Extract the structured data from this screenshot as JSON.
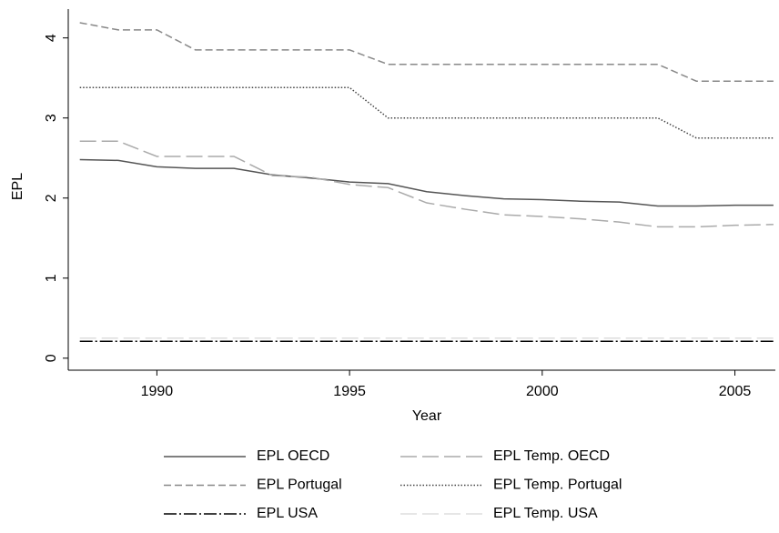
{
  "chart_data": {
    "type": "line",
    "x_label": "Year",
    "y_label": "EPL",
    "x": [
      1988,
      1989,
      1990,
      1991,
      1992,
      1993,
      1994,
      1995,
      1996,
      1997,
      1998,
      1999,
      2000,
      2001,
      2002,
      2003,
      2004,
      2005,
      2006
    ],
    "series": [
      {
        "name": "EPL OECD",
        "color": "#555555",
        "style": "solid",
        "values": [
          2.48,
          2.47,
          2.39,
          2.37,
          2.37,
          2.29,
          2.25,
          2.2,
          2.18,
          2.08,
          2.03,
          1.99,
          1.98,
          1.96,
          1.95,
          1.9,
          1.9,
          1.91,
          1.91
        ]
      },
      {
        "name": "EPL Temp. OECD",
        "color": "#aaaaaa",
        "style": "longdash",
        "values": [
          2.71,
          2.71,
          2.52,
          2.52,
          2.52,
          2.28,
          2.26,
          2.17,
          2.13,
          1.94,
          1.86,
          1.79,
          1.77,
          1.74,
          1.7,
          1.64,
          1.64,
          1.66,
          1.67
        ]
      },
      {
        "name": "EPL Portugal",
        "color": "#888888",
        "style": "dashed",
        "values": [
          4.19,
          4.1,
          4.1,
          3.85,
          3.85,
          3.85,
          3.85,
          3.85,
          3.67,
          3.67,
          3.67,
          3.67,
          3.67,
          3.67,
          3.67,
          3.67,
          3.46,
          3.46,
          3.46
        ]
      },
      {
        "name": "EPL Temp. Portugal",
        "color": "#444444",
        "style": "dotted",
        "values": [
          3.38,
          3.38,
          3.38,
          3.38,
          3.38,
          3.38,
          3.38,
          3.38,
          3.0,
          3.0,
          3.0,
          3.0,
          3.0,
          3.0,
          3.0,
          3.0,
          2.75,
          2.75,
          2.75
        ]
      },
      {
        "name": "EPL USA",
        "color": "#000000",
        "style": "dashdot",
        "values": [
          0.21,
          0.21,
          0.21,
          0.21,
          0.21,
          0.21,
          0.21,
          0.21,
          0.21,
          0.21,
          0.21,
          0.21,
          0.21,
          0.21,
          0.21,
          0.21,
          0.21,
          0.21,
          0.21
        ]
      },
      {
        "name": "EPL Temp. USA",
        "color": "#dddddd",
        "style": "longdash",
        "values": [
          0.25,
          0.25,
          0.25,
          0.25,
          0.25,
          0.25,
          0.25,
          0.25,
          0.25,
          0.25,
          0.25,
          0.25,
          0.25,
          0.25,
          0.25,
          0.25,
          0.25,
          0.25,
          0.25
        ]
      }
    ],
    "xlim": [
      1987.7,
      2006.05
    ],
    "xticks": [
      1990,
      1995,
      2000,
      2005
    ],
    "ylim": [
      -0.15,
      4.36
    ],
    "yticks": [
      0,
      1,
      2,
      3,
      4
    ],
    "grid": false
  }
}
